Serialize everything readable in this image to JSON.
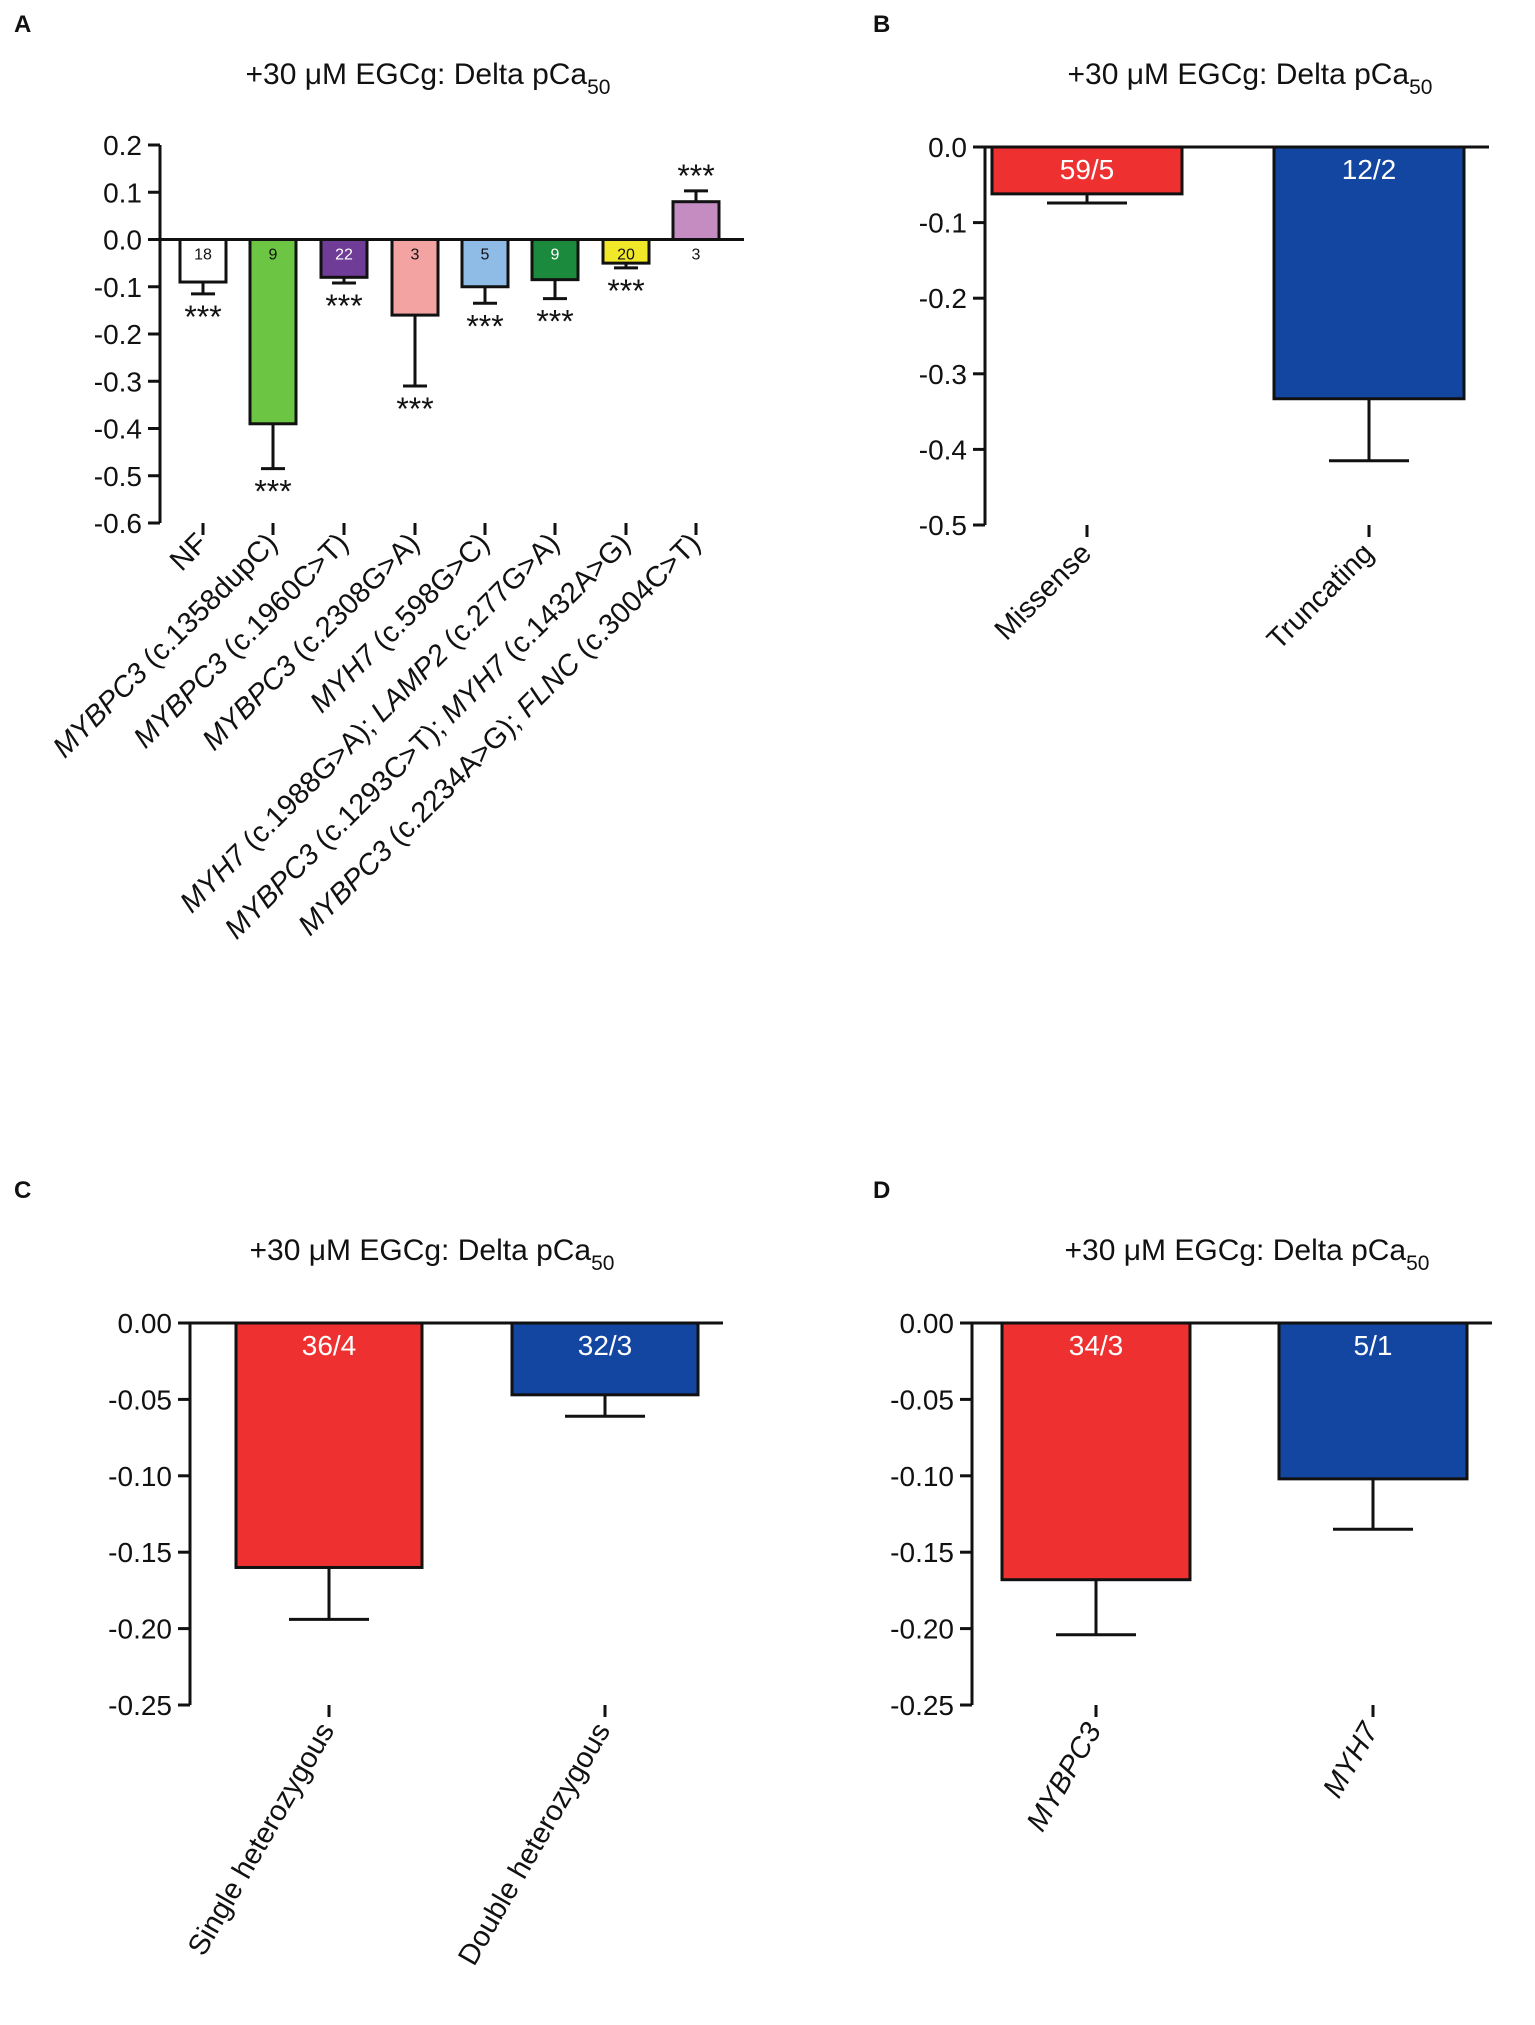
{
  "panels": {
    "A": {
      "letter": "A",
      "title_main": "+30 μM EGCg: Delta pCa",
      "title_sub": "50"
    },
    "B": {
      "letter": "B",
      "title_main": "+30 μM EGCg: Delta pCa",
      "title_sub": "50"
    },
    "C": {
      "letter": "C",
      "title_main": "+30 μM EGCg: Delta pCa",
      "title_sub": "50"
    },
    "D": {
      "letter": "D",
      "title_main": "+30 μM EGCg: Delta pCa",
      "title_sub": "50"
    }
  },
  "chart_data": [
    {
      "panel": "A",
      "type": "bar",
      "title": "+30 μM EGCg: Delta pCa50",
      "ylim": [
        -0.6,
        0.2
      ],
      "yticks": [
        "0.2",
        "0.1",
        "0.0",
        "-0.1",
        "-0.2",
        "-0.3",
        "-0.4",
        "-0.5",
        "-0.6"
      ],
      "categories": [
        {
          "gene": "NF",
          "variant": ""
        },
        {
          "gene": "MYBPC3",
          "variant": " (c.1358dupC)"
        },
        {
          "gene": "MYBPC3",
          "variant": " (c.1960C>T)"
        },
        {
          "gene": "MYBPC3",
          "variant": " (c.2308G>A)"
        },
        {
          "gene": "MYH7",
          "variant": " (c.598G>C)"
        },
        {
          "gene": "MYH7",
          "variant": " (c.1988G>A); ",
          "gene2": "LAMP2",
          "variant2": " (c.277G>A)"
        },
        {
          "gene": "MYBPC3",
          "variant": " (c.1293C>T); ",
          "gene2": "MYH7",
          "variant2": " (c.1432A>G)"
        },
        {
          "gene": "MYBPC3",
          "variant": " (c.2234A>G); ",
          "gene2": "FLNC",
          "variant2": " (c.3004C>T)"
        }
      ],
      "values": [
        -0.09,
        -0.39,
        -0.08,
        -0.16,
        -0.1,
        -0.085,
        -0.05,
        0.08
      ],
      "errors": [
        0.025,
        0.095,
        0.012,
        0.15,
        0.035,
        0.04,
        0.01,
        0.023
      ],
      "n_labels": [
        "18",
        "9",
        "22",
        "3",
        "5",
        "9",
        "20",
        "3"
      ],
      "significance": [
        "***",
        "***",
        "***",
        "***",
        "***",
        "***",
        "***",
        "***"
      ],
      "colors": [
        "#ffffff",
        "#6cc644",
        "#6f3c97",
        "#f4a3a3",
        "#8fbce6",
        "#1b8a3c",
        "#f2e82a",
        "#c58cc1"
      ],
      "n_label_colors": [
        "#111111",
        "#111111",
        "#ffffff",
        "#111111",
        "#111111",
        "#ffffff",
        "#111111",
        "#111111"
      ]
    },
    {
      "panel": "B",
      "type": "bar",
      "title": "+30 μM EGCg: Delta pCa50",
      "ylim": [
        -0.5,
        0.0
      ],
      "yticks": [
        "0.0",
        "-0.1",
        "-0.2",
        "-0.3",
        "-0.4",
        "-0.5"
      ],
      "categories": [
        {
          "gene": "Missense",
          "variant": ""
        },
        {
          "gene": "Truncating",
          "variant": ""
        }
      ],
      "values": [
        -0.062,
        -0.333
      ],
      "errors": [
        0.012,
        0.082
      ],
      "n_labels": [
        "59/5",
        "12/2"
      ],
      "colors": [
        "#ee3130",
        "#1346a0"
      ]
    },
    {
      "panel": "C",
      "type": "bar",
      "title": "+30 μM EGCg: Delta pCa50",
      "ylim": [
        -0.25,
        0.0
      ],
      "yticks": [
        "0.00",
        "-0.05",
        "-0.10",
        "-0.15",
        "-0.20",
        "-0.25"
      ],
      "categories": [
        {
          "gene": "Single heterozygous",
          "variant": ""
        },
        {
          "gene": "Double heterozygous",
          "variant": ""
        }
      ],
      "values": [
        -0.16,
        -0.047
      ],
      "errors": [
        0.034,
        0.014
      ],
      "n_labels": [
        "36/4",
        "32/3"
      ],
      "colors": [
        "#ee3130",
        "#1346a0"
      ]
    },
    {
      "panel": "D",
      "type": "bar",
      "title": "+30 μM EGCg: Delta pCa50",
      "ylim": [
        -0.25,
        0.0
      ],
      "yticks": [
        "0.00",
        "-0.05",
        "-0.10",
        "-0.15",
        "-0.20",
        "-0.25"
      ],
      "categories": [
        {
          "gene": "MYBPC3",
          "variant": "",
          "italic": true
        },
        {
          "gene": "MYH7",
          "variant": "",
          "italic": true
        }
      ],
      "values": [
        -0.168,
        -0.102
      ],
      "errors": [
        0.036,
        0.033
      ],
      "n_labels": [
        "34/3",
        "5/1"
      ],
      "colors": [
        "#ee3130",
        "#1346a0"
      ]
    }
  ]
}
